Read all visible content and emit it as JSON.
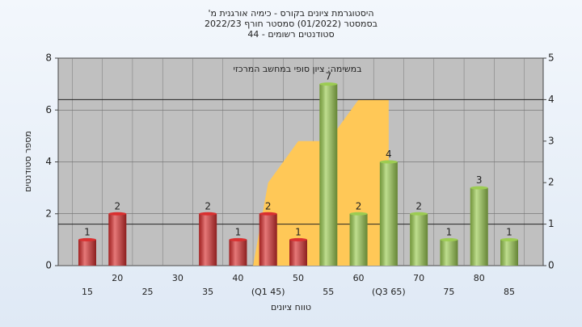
{
  "chart_data": {
    "type": "bar",
    "title": [
      "'היסטוגרמת ציונים בקורס - כימיה אורגנית מ",
      "בסמסטר  (01/2022)  סמסטר חורף 2022/23",
      "סטודנטים רשומים - 44"
    ],
    "annotation": "במשימה: ציון סופי במחשב המרכזי",
    "x_label": "טווח ציונים",
    "y_label": "מספר סטודנטים",
    "categories": [
      "15",
      "20",
      "25",
      "30",
      "35",
      "40",
      "(Q1 45)",
      "50",
      "55",
      "60",
      "(Q3 65)",
      "70",
      "75",
      "80",
      "85"
    ],
    "values": [
      1,
      2,
      0,
      0,
      2,
      1,
      2,
      1,
      7,
      2,
      4,
      2,
      1,
      3,
      1
    ],
    "value_labels": [
      "1",
      "2",
      null,
      null,
      "2",
      "1",
      "2",
      "1",
      "7",
      "2",
      "4",
      "2",
      "1",
      "3",
      "1"
    ],
    "bar_colors": [
      "#d93030",
      "#d93030",
      "#d93030",
      "#d93030",
      "#d93030",
      "#d93030",
      "#d93030",
      "#d93030",
      "#9ccc52",
      "#9ccc52",
      "#9ccc52",
      "#9ccc52",
      "#9ccc52",
      "#9ccc52",
      "#9ccc52"
    ],
    "area": {
      "color": "#ffc857",
      "axis": "y2",
      "values": [
        null,
        null,
        null,
        null,
        null,
        null,
        2,
        3,
        3,
        4,
        4,
        null,
        null,
        null,
        null
      ]
    },
    "y2_lines": [
      1,
      4
    ],
    "ylim": [
      0,
      8
    ],
    "yticks": [
      0,
      2,
      4,
      6,
      8
    ],
    "y2lim": [
      0,
      5
    ],
    "y2ticks": [
      0,
      1,
      2,
      3,
      4,
      5
    ],
    "grid": true
  }
}
